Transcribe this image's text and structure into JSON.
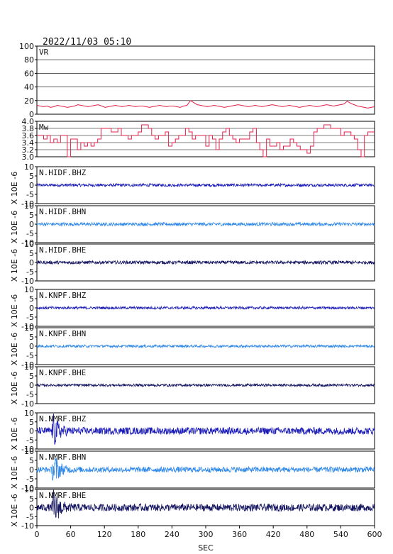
{
  "header": {
    "title": "2022/11/03  05:10"
  },
  "chart_data": {
    "type": "line",
    "title": "2022/11/03  05:10",
    "xlabel": "SEC",
    "xlim": [
      0,
      600
    ],
    "xticks": [
      "0",
      "60",
      "120",
      "180",
      "240",
      "300",
      "360",
      "420",
      "480",
      "540",
      "600"
    ],
    "ylabel_waveform": "X 10E -6",
    "grid": false,
    "panels": [
      {
        "id": "vr",
        "label": "VR",
        "kind": "vr",
        "ylim": [
          0,
          100
        ],
        "yticks": [
          "0",
          "20",
          "40",
          "60",
          "80",
          "100"
        ],
        "color": "#e0204a",
        "grid": true,
        "series_values": [
          13,
          12,
          11,
          12,
          10,
          11,
          13,
          12,
          11,
          10,
          11,
          12,
          14,
          13,
          12,
          11,
          12,
          13,
          14,
          12,
          10,
          11,
          12,
          13,
          12,
          11,
          12,
          13,
          12,
          11,
          12,
          12,
          11,
          10,
          11,
          12,
          13,
          12,
          11,
          12,
          12,
          11,
          10,
          12,
          13,
          20,
          17,
          14,
          13,
          12,
          11,
          12,
          13,
          12,
          11,
          10,
          11,
          12,
          13,
          14,
          13,
          12,
          11,
          12,
          13,
          12,
          11,
          12,
          13,
          14,
          13,
          12,
          11,
          12,
          13,
          12,
          11,
          10,
          11,
          12,
          13,
          12,
          11,
          12,
          13,
          14,
          13,
          12,
          13,
          14,
          15,
          19,
          16,
          14,
          12,
          11,
          10,
          9,
          10,
          11
        ]
      },
      {
        "id": "mw",
        "label": "Mw",
        "kind": "mw",
        "ylim": [
          3.0,
          4.0
        ],
        "yticks": [
          "3.0",
          "3.2",
          "3.4",
          "3.6",
          "3.8",
          "4.0"
        ],
        "color": "#e0204a",
        "grid": true,
        "series_values": [
          3.6,
          3.6,
          3.5,
          3.6,
          3.4,
          3.5,
          3.4,
          3.6,
          3.6,
          3.0,
          3.5,
          3.5,
          3.2,
          3.4,
          3.3,
          3.4,
          3.3,
          3.4,
          3.5,
          3.8,
          3.8,
          3.8,
          3.7,
          3.7,
          3.8,
          3.6,
          3.6,
          3.5,
          3.6,
          3.6,
          3.7,
          3.9,
          3.9,
          3.8,
          3.6,
          3.5,
          3.6,
          3.6,
          3.7,
          3.3,
          3.4,
          3.5,
          3.6,
          3.6,
          3.8,
          3.7,
          3.5,
          3.6,
          3.6,
          3.6,
          3.3,
          3.6,
          3.5,
          3.2,
          3.5,
          3.7,
          3.8,
          3.6,
          3.5,
          3.4,
          3.5,
          3.5,
          3.5,
          3.7,
          3.8,
          3.4,
          3.2,
          3.0,
          3.5,
          3.3,
          3.3,
          3.4,
          3.2,
          3.3,
          3.3,
          3.5,
          3.4,
          3.3,
          3.2,
          3.2,
          3.1,
          3.3,
          3.7,
          3.8,
          3.8,
          3.9,
          3.9,
          3.8,
          3.8,
          3.8,
          3.6,
          3.7,
          3.7,
          3.6,
          3.5,
          3.2,
          3.0,
          3.6,
          3.7,
          3.7
        ]
      },
      {
        "id": "hidf-bhz",
        "label": "N.HIDF.BHZ",
        "kind": "wave",
        "ylim": [
          -10,
          10
        ],
        "yticks": [
          "-10",
          "-5",
          "0",
          "5",
          "10"
        ],
        "color": "#1a1ab8",
        "amp": 0.8,
        "burst": 0
      },
      {
        "id": "hidf-bhn",
        "label": "N.HIDF.BHN",
        "kind": "wave",
        "ylim": [
          -10,
          10
        ],
        "yticks": [
          "-10",
          "-5",
          "0",
          "5",
          "10"
        ],
        "color": "#2f88e8",
        "amp": 0.9,
        "burst": 0
      },
      {
        "id": "hidf-bhe",
        "label": "N.HIDF.BHE",
        "kind": "wave",
        "ylim": [
          -10,
          10
        ],
        "yticks": [
          "-10",
          "-5",
          "0",
          "5",
          "10"
        ],
        "color": "#12125e",
        "amp": 0.9,
        "burst": 0
      },
      {
        "id": "knpf-bhz",
        "label": "N.KNPF.BHZ",
        "kind": "wave",
        "ylim": [
          -10,
          10
        ],
        "yticks": [
          "-10",
          "-5",
          "0",
          "5",
          "10"
        ],
        "color": "#1a1ab8",
        "amp": 0.7,
        "burst": 0
      },
      {
        "id": "knpf-bhn",
        "label": "N.KNPF.BHN",
        "kind": "wave",
        "ylim": [
          -10,
          10
        ],
        "yticks": [
          "-10",
          "-5",
          "0",
          "5",
          "10"
        ],
        "color": "#2f88e8",
        "amp": 0.7,
        "burst": 0
      },
      {
        "id": "knpf-bhe",
        "label": "N.KNPF.BHE",
        "kind": "wave",
        "ylim": [
          -10,
          10
        ],
        "yticks": [
          "-10",
          "-5",
          "0",
          "5",
          "10"
        ],
        "color": "#12125e",
        "amp": 0.7,
        "burst": 0
      },
      {
        "id": "nmrf-bhz",
        "label": "N.NMRF.BHZ",
        "kind": "wave",
        "ylim": [
          -10,
          10
        ],
        "yticks": [
          "-10",
          "-5",
          "0",
          "5",
          "10"
        ],
        "color": "#1a1ab8",
        "amp": 2.0,
        "burst": 8.5,
        "burst_at": 30
      },
      {
        "id": "nmrf-bhn",
        "label": "N.NMRF.BHN",
        "kind": "wave",
        "ylim": [
          -10,
          10
        ],
        "yticks": [
          "-10",
          "-5",
          "0",
          "5",
          "10"
        ],
        "color": "#2f88e8",
        "amp": 1.5,
        "burst": 9.5,
        "burst_at": 30
      },
      {
        "id": "nmrf-bhe",
        "label": "N.NMRF.BHE",
        "kind": "wave",
        "ylim": [
          -10,
          10
        ],
        "yticks": [
          "-10",
          "-5",
          "0",
          "5",
          "10"
        ],
        "color": "#12125e",
        "amp": 2.0,
        "burst": 11.0,
        "burst_at": 30
      }
    ]
  }
}
